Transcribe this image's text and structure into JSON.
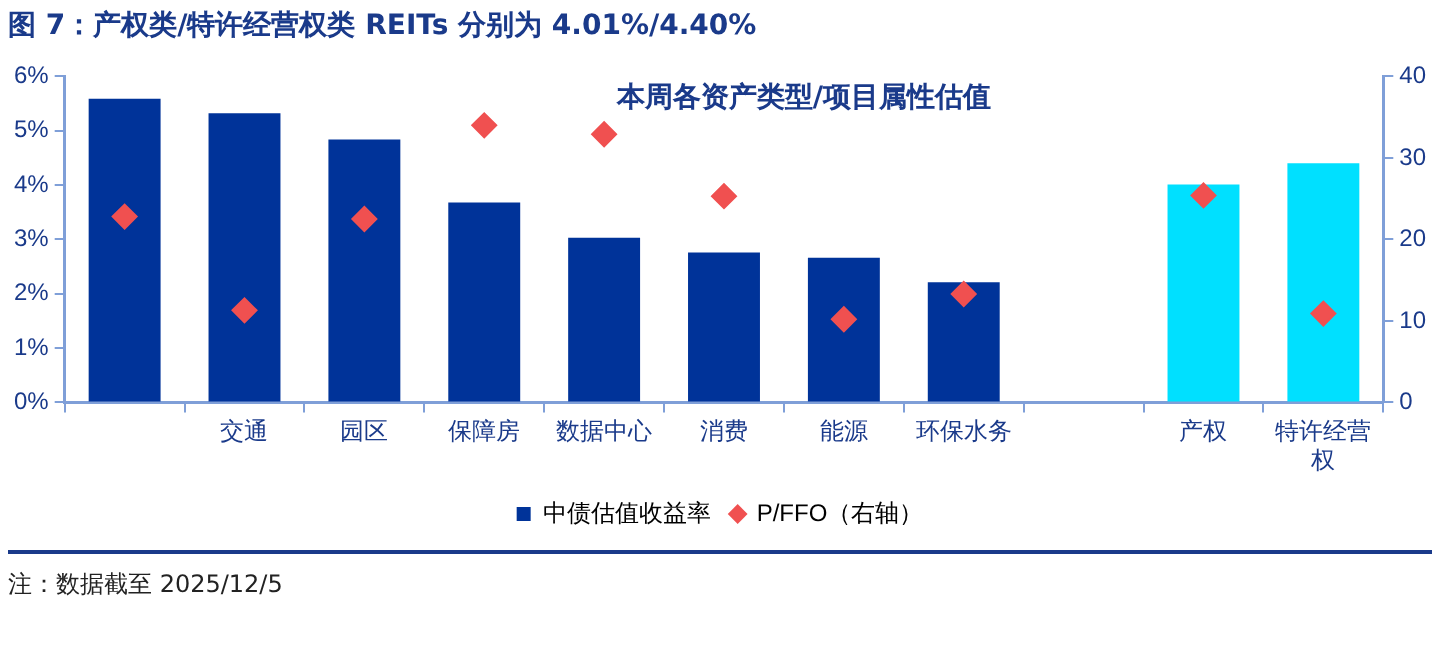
{
  "chart_data": {
    "type": "bar",
    "title": "图 7：产权类/特许经营权类 REITs 分别为 4.01%/4.40%",
    "subtitle": "本周各资产类型/项目属性估值",
    "categories": [
      null,
      "交通",
      "园区",
      "保障房",
      "数据中心",
      "消费",
      "能源",
      "环保水务",
      null,
      "产权",
      "特许经营权"
    ],
    "series": [
      {
        "name": "中债估值收益率",
        "color": "#003399",
        "colors": [
          "#003399",
          "#003399",
          "#003399",
          "#003399",
          "#003399",
          "#003399",
          "#003399",
          "#003399",
          "#003399",
          "#00e0ff",
          "#00e0ff"
        ],
        "values": [
          5.59,
          5.32,
          4.84,
          3.68,
          3.03,
          2.76,
          2.66,
          2.21,
          null,
          4.01,
          4.4
        ]
      },
      {
        "name": "P/FFO（右轴）",
        "type": "scatter",
        "axis": "y2",
        "color": "#f05050",
        "values": [
          22.8,
          11.3,
          22.5,
          34.0,
          32.9,
          25.3,
          10.2,
          13.3,
          null,
          25.4,
          10.9
        ]
      }
    ],
    "ylim": [
      0,
      6
    ],
    "yticks": [
      {
        "value": 0,
        "label": "0%"
      },
      {
        "value": 1,
        "label": "1%"
      },
      {
        "value": 2,
        "label": "2%"
      },
      {
        "value": 3,
        "label": "3%"
      },
      {
        "value": 4,
        "label": "4%"
      },
      {
        "value": 5,
        "label": "5%"
      },
      {
        "value": 6,
        "label": "6%"
      }
    ],
    "y2lim": [
      0,
      40
    ],
    "y2ticks": [
      0,
      10,
      20,
      30,
      40
    ],
    "grid": false,
    "legend": "bottom",
    "marker": "diamond",
    "annotations": [
      "注：数据截至 2025/12/5"
    ]
  }
}
